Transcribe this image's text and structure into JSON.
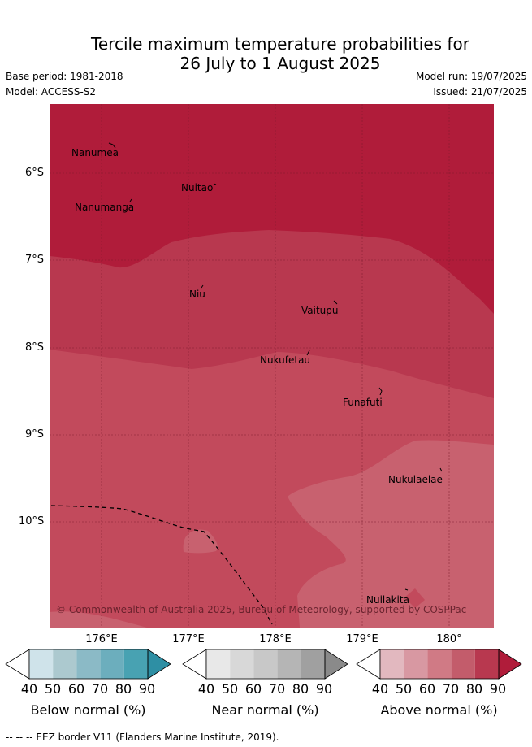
{
  "title_line1": "Tercile maximum temperature probabilities for",
  "title_line2": "26 July to 1 August 2025",
  "base_period": "Base period: 1981-2018",
  "model": "Model: ACCESS-S2",
  "model_run": "Model run: 19/07/2025",
  "issued": "Issued: 21/07/2025",
  "copyright": "© Commonwealth of Australia 2025, Bureau of Meteorology, supported by COSPPac",
  "footer": "-- -- -- EEZ border V11 (Flanders Marine Institute, 2019).",
  "y_ticks": [
    "6°S",
    "7°S",
    "8°S",
    "9°S",
    "10°S"
  ],
  "x_ticks": [
    "176°E",
    "177°E",
    "178°E",
    "179°E",
    "180°"
  ],
  "places": {
    "nanumea": "Nanumea",
    "nuitao": "Nuitao",
    "nanumanga": "Nanumanga",
    "niu": "Niu",
    "vaitupu": "Vaitupu",
    "nukufetau": "Nukufetau",
    "funafuti": "Funafuti",
    "nukulaelae": "Nukulaelae",
    "nuilakita": "Nuilakita"
  },
  "colorbars": {
    "ticks": [
      "40",
      "50",
      "60",
      "70",
      "80",
      "90"
    ],
    "below": {
      "label": "Below normal (%)",
      "colors": [
        "#ffffff",
        "#cfe3ea",
        "#acc9cf",
        "#8bbac6",
        "#6caebd",
        "#48a2b2",
        "#2e8fa4"
      ]
    },
    "near": {
      "label": "Near normal (%)",
      "colors": [
        "#ffffff",
        "#e8e8e8",
        "#d8d8d8",
        "#c8c8c8",
        "#b5b5b5",
        "#a0a0a0",
        "#8a8a8a"
      ]
    },
    "above": {
      "label": "Above normal (%)",
      "colors": [
        "#ffffff",
        "#e2b8bf",
        "#d898a2",
        "#d07a85",
        "#c35c6b",
        "#b8384f",
        "#b01c3a"
      ]
    }
  },
  "map_colors": {
    "band_90": "#b01c3a",
    "band_80": "#b8384f",
    "band_70": "#c24a5c",
    "band_60": "#c8616f"
  }
}
